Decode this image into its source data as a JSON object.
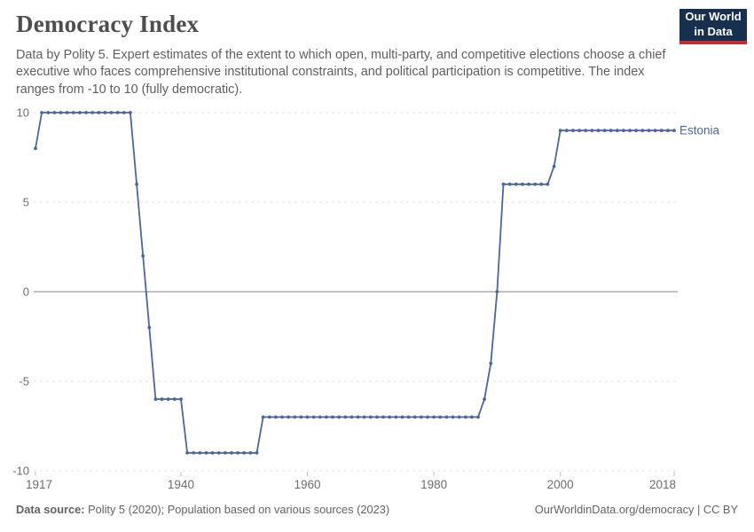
{
  "header": {
    "title": "Democracy Index",
    "subtitle": "Data by Polity 5. Expert estimates of the extent to which open, multi-party, and competitive elections choose a chief executive who faces comprehensive institutional constraints, and political participation is competitive. The index ranges from -10 to 10 (fully democratic)."
  },
  "logo": {
    "line1": "Our World",
    "line2": "in Data",
    "bg_color": "#18304f",
    "bar_color": "#cb2a2d"
  },
  "footer": {
    "source_label": "Data source:",
    "source_text": " Polity 5 (2020); Population based on various sources (2023)",
    "link_text": "OurWorldinData.org/democracy | CC BY"
  },
  "chart_data": {
    "type": "line",
    "title": "Democracy Index",
    "xlabel": "",
    "ylabel": "",
    "xlim": [
      1917,
      2018
    ],
    "ylim": [
      -10,
      10
    ],
    "xticks": [
      1917,
      1940,
      1960,
      1980,
      2000,
      2018
    ],
    "yticks": [
      10,
      5,
      0,
      -5,
      -10
    ],
    "grid": "horizontal dashed gridlines, solid line at 0",
    "legend_position": "label at right end of line",
    "line_color": "#4a679e",
    "axis_text_color": "#6d6d6d",
    "grid_color": "#e2e2e2",
    "zero_line_color": "#9c9c9c",
    "tick_color": "#bdbdbd",
    "series": [
      {
        "name": "Estonia",
        "points": [
          [
            1917,
            8
          ],
          [
            1918,
            10
          ],
          [
            1919,
            10
          ],
          [
            1920,
            10
          ],
          [
            1921,
            10
          ],
          [
            1922,
            10
          ],
          [
            1923,
            10
          ],
          [
            1924,
            10
          ],
          [
            1925,
            10
          ],
          [
            1926,
            10
          ],
          [
            1927,
            10
          ],
          [
            1928,
            10
          ],
          [
            1929,
            10
          ],
          [
            1930,
            10
          ],
          [
            1931,
            10
          ],
          [
            1932,
            10
          ],
          [
            1933,
            6
          ],
          [
            1934,
            2
          ],
          [
            1935,
            -2
          ],
          [
            1936,
            -6
          ],
          [
            1937,
            -6
          ],
          [
            1938,
            -6
          ],
          [
            1939,
            -6
          ],
          [
            1940,
            -6
          ],
          [
            1941,
            -9
          ],
          [
            1942,
            -9
          ],
          [
            1943,
            -9
          ],
          [
            1944,
            -9
          ],
          [
            1945,
            -9
          ],
          [
            1946,
            -9
          ],
          [
            1947,
            -9
          ],
          [
            1948,
            -9
          ],
          [
            1949,
            -9
          ],
          [
            1950,
            -9
          ],
          [
            1951,
            -9
          ],
          [
            1952,
            -9
          ],
          [
            1953,
            -7
          ],
          [
            1954,
            -7
          ],
          [
            1955,
            -7
          ],
          [
            1956,
            -7
          ],
          [
            1957,
            -7
          ],
          [
            1958,
            -7
          ],
          [
            1959,
            -7
          ],
          [
            1960,
            -7
          ],
          [
            1961,
            -7
          ],
          [
            1962,
            -7
          ],
          [
            1963,
            -7
          ],
          [
            1964,
            -7
          ],
          [
            1965,
            -7
          ],
          [
            1966,
            -7
          ],
          [
            1967,
            -7
          ],
          [
            1968,
            -7
          ],
          [
            1969,
            -7
          ],
          [
            1970,
            -7
          ],
          [
            1971,
            -7
          ],
          [
            1972,
            -7
          ],
          [
            1973,
            -7
          ],
          [
            1974,
            -7
          ],
          [
            1975,
            -7
          ],
          [
            1976,
            -7
          ],
          [
            1977,
            -7
          ],
          [
            1978,
            -7
          ],
          [
            1979,
            -7
          ],
          [
            1980,
            -7
          ],
          [
            1981,
            -7
          ],
          [
            1982,
            -7
          ],
          [
            1983,
            -7
          ],
          [
            1984,
            -7
          ],
          [
            1985,
            -7
          ],
          [
            1986,
            -7
          ],
          [
            1987,
            -7
          ],
          [
            1988,
            -6
          ],
          [
            1989,
            -4
          ],
          [
            1990,
            0
          ],
          [
            1991,
            6
          ],
          [
            1992,
            6
          ],
          [
            1993,
            6
          ],
          [
            1994,
            6
          ],
          [
            1995,
            6
          ],
          [
            1996,
            6
          ],
          [
            1997,
            6
          ],
          [
            1998,
            6
          ],
          [
            1999,
            7
          ],
          [
            2000,
            9
          ],
          [
            2001,
            9
          ],
          [
            2002,
            9
          ],
          [
            2003,
            9
          ],
          [
            2004,
            9
          ],
          [
            2005,
            9
          ],
          [
            2006,
            9
          ],
          [
            2007,
            9
          ],
          [
            2008,
            9
          ],
          [
            2009,
            9
          ],
          [
            2010,
            9
          ],
          [
            2011,
            9
          ],
          [
            2012,
            9
          ],
          [
            2013,
            9
          ],
          [
            2014,
            9
          ],
          [
            2015,
            9
          ],
          [
            2016,
            9
          ],
          [
            2017,
            9
          ],
          [
            2018,
            9
          ]
        ]
      }
    ]
  }
}
